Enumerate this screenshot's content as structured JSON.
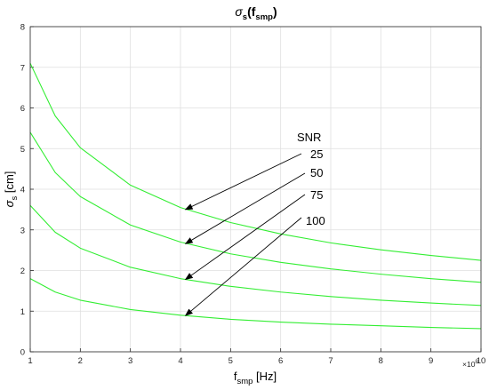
{
  "chart_data": {
    "type": "line",
    "title": {
      "symbol": "σ",
      "subscript": "s",
      "open": "(f",
      "arg_sub": "smp",
      "close": ")"
    },
    "xlabel": {
      "base": "f",
      "subscript": "smp",
      "unit": " [Hz]"
    },
    "ylabel": {
      "symbol": "σ",
      "subscript": "s",
      "unit": " [cm]"
    },
    "x_multiplier": {
      "base": "×10",
      "exponent": "8"
    },
    "xlim": [
      1,
      10
    ],
    "ylim": [
      0,
      8
    ],
    "xticks": [
      1,
      2,
      3,
      4,
      5,
      6,
      7,
      8,
      9,
      10
    ],
    "yticks": [
      0,
      1,
      2,
      3,
      4,
      5,
      6,
      7,
      8
    ],
    "grid": true,
    "line_color": "#33ee33",
    "series": [
      {
        "snr": "25",
        "x": [
          1,
          1.5,
          2,
          3,
          4,
          5,
          6,
          7,
          8,
          9,
          10
        ],
        "y": [
          7.1,
          5.8,
          5.02,
          4.1,
          3.55,
          3.18,
          2.9,
          2.68,
          2.51,
          2.37,
          2.25
        ]
      },
      {
        "snr": "50",
        "x": [
          1,
          1.5,
          2,
          3,
          4,
          5,
          6,
          7,
          8,
          9,
          10
        ],
        "y": [
          5.4,
          4.41,
          3.82,
          3.12,
          2.7,
          2.41,
          2.2,
          2.04,
          1.91,
          1.8,
          1.71
        ]
      },
      {
        "snr": "75",
        "x": [
          1,
          1.5,
          2,
          3,
          4,
          5,
          6,
          7,
          8,
          9,
          10
        ],
        "y": [
          3.6,
          2.94,
          2.55,
          2.08,
          1.8,
          1.61,
          1.47,
          1.36,
          1.27,
          1.2,
          1.14
        ]
      },
      {
        "snr": "100",
        "x": [
          1,
          1.5,
          2,
          3,
          4,
          5,
          6,
          7,
          8,
          9,
          10
        ],
        "y": [
          1.8,
          1.47,
          1.27,
          1.04,
          0.9,
          0.8,
          0.73,
          0.68,
          0.64,
          0.6,
          0.57
        ]
      }
    ],
    "annotations": {
      "header": "SNR",
      "labels": [
        "25",
        "50",
        "75",
        "100"
      ],
      "arrow_targets": [
        {
          "x": 4.1,
          "y": 3.5
        },
        {
          "x": 4.1,
          "y": 2.66
        },
        {
          "x": 4.1,
          "y": 1.78
        },
        {
          "x": 4.1,
          "y": 0.89
        }
      ]
    }
  }
}
